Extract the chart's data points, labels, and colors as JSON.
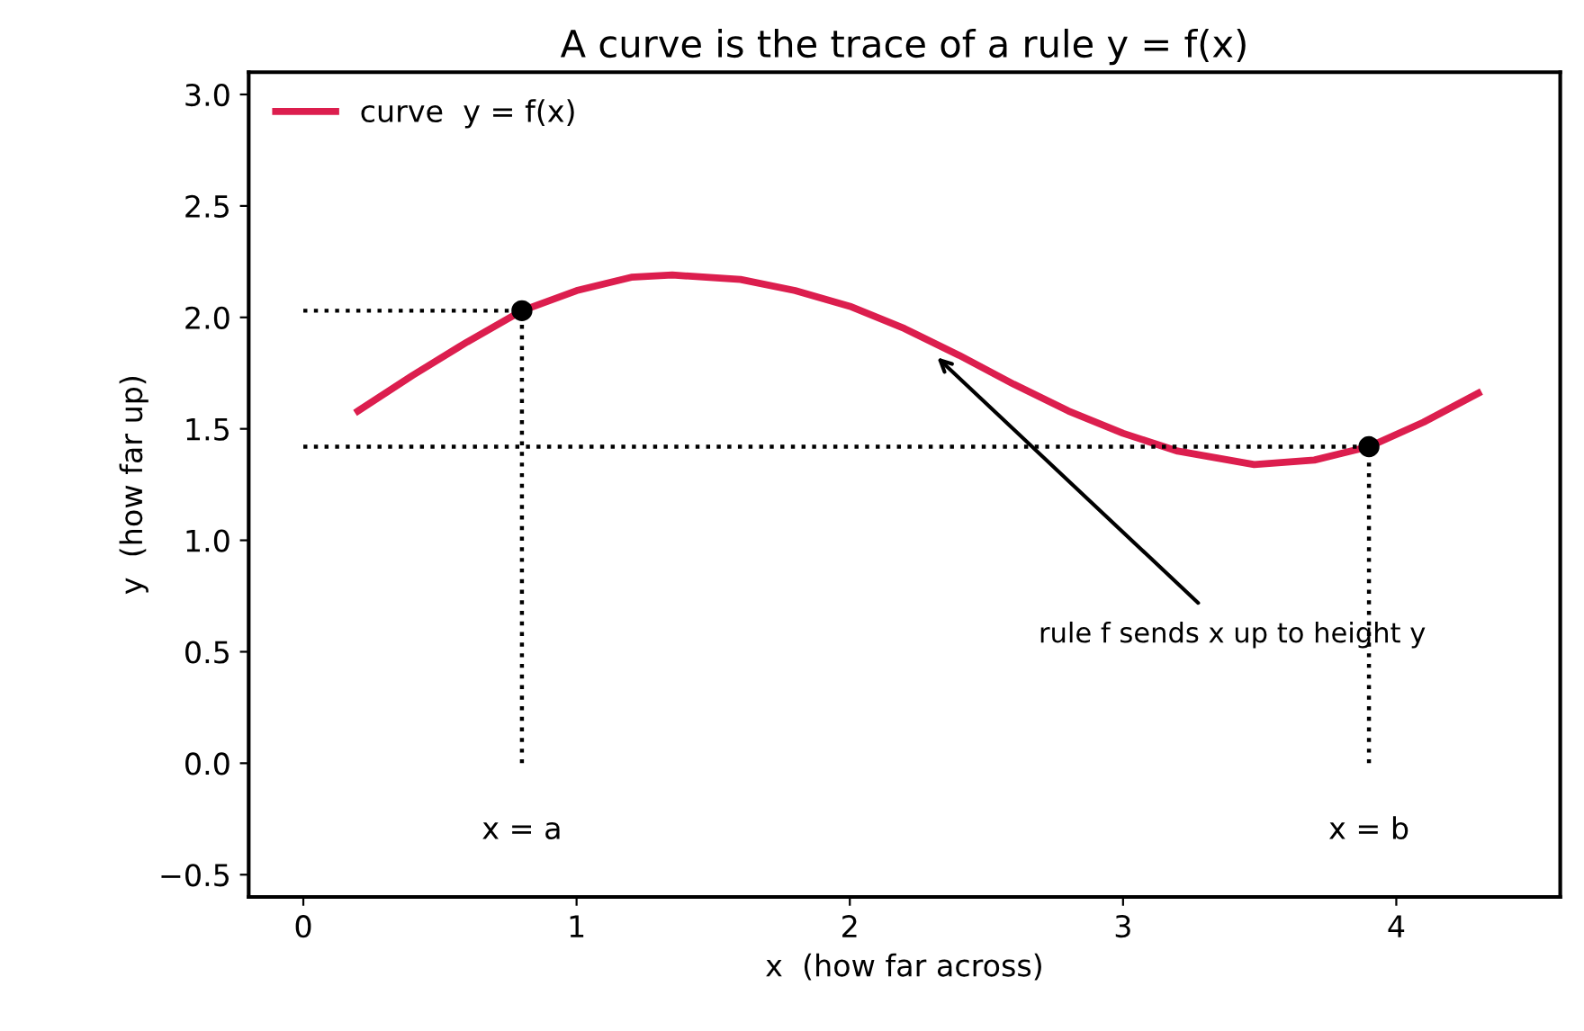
{
  "chart_data": {
    "type": "line",
    "title": "A curve is the trace of a rule y = f(x)",
    "xlabel": "x  (how far across)",
    "ylabel": "y  (how far up)",
    "xlim": [
      -0.2,
      4.6
    ],
    "ylim": [
      -0.6,
      3.1
    ],
    "xticks": [
      0,
      1,
      2,
      3,
      4
    ],
    "yticks": [
      {
        "value": -0.5,
        "label": "−0.5"
      },
      {
        "value": 0,
        "label": "0.0"
      },
      {
        "value": 0.5,
        "label": "0.5"
      },
      {
        "value": 1,
        "label": "1.0"
      },
      {
        "value": 1.5,
        "label": "1.5"
      },
      {
        "value": 2,
        "label": "2.0"
      },
      {
        "value": 2.5,
        "label": "2.5"
      },
      {
        "value": 3,
        "label": "3.0"
      }
    ],
    "grid": false,
    "legend": "top left",
    "series": [
      {
        "name": "curve  y = f(x)",
        "color": "#dc1e4e",
        "line_style": "solid",
        "marker": "none",
        "x": [
          0.2,
          0.4,
          0.6,
          0.8,
          1.0,
          1.2,
          1.35,
          1.6,
          1.8,
          2.0,
          2.2,
          2.4,
          2.6,
          2.8,
          3.0,
          3.2,
          3.48,
          3.7,
          3.9,
          4.1,
          4.3
        ],
        "values": [
          1.58,
          1.74,
          1.89,
          2.03,
          2.12,
          2.18,
          2.19,
          2.17,
          2.12,
          2.05,
          1.95,
          1.83,
          1.7,
          1.58,
          1.48,
          1.4,
          1.34,
          1.36,
          1.42,
          1.53,
          1.66
        ]
      },
      {
        "type": "line",
        "color": "#000000",
        "line_style": "dotted",
        "marker": "none",
        "x": [
          0,
          0.8
        ],
        "values": [
          2.03,
          2.03
        ]
      },
      {
        "type": "line",
        "color": "#000000",
        "line_style": "dotted",
        "marker": "none",
        "x": [
          0,
          3.9
        ],
        "values": [
          1.42,
          1.42
        ]
      },
      {
        "type": "line",
        "color": "#000000",
        "line_style": "dotted",
        "marker": "none",
        "x": [
          0.8,
          0.8
        ],
        "values": [
          0,
          2.03
        ]
      },
      {
        "type": "line",
        "color": "#000000",
        "line_style": "dotted",
        "marker": "none",
        "x": [
          3.9,
          3.9
        ],
        "values": [
          0,
          1.42
        ]
      },
      {
        "type": "scatter",
        "color": "#000000",
        "marker": "circle",
        "x": [
          0.8,
          3.9
        ],
        "values": [
          2.03,
          1.42
        ]
      }
    ],
    "annotations": [
      {
        "text": "x = a",
        "x": 0.8,
        "y": 0
      },
      {
        "text": "x = b",
        "x": 3.9,
        "y": 0
      },
      {
        "text": "rule f sends x up to height y",
        "x": 2.32,
        "y": 1.82
      }
    ]
  }
}
